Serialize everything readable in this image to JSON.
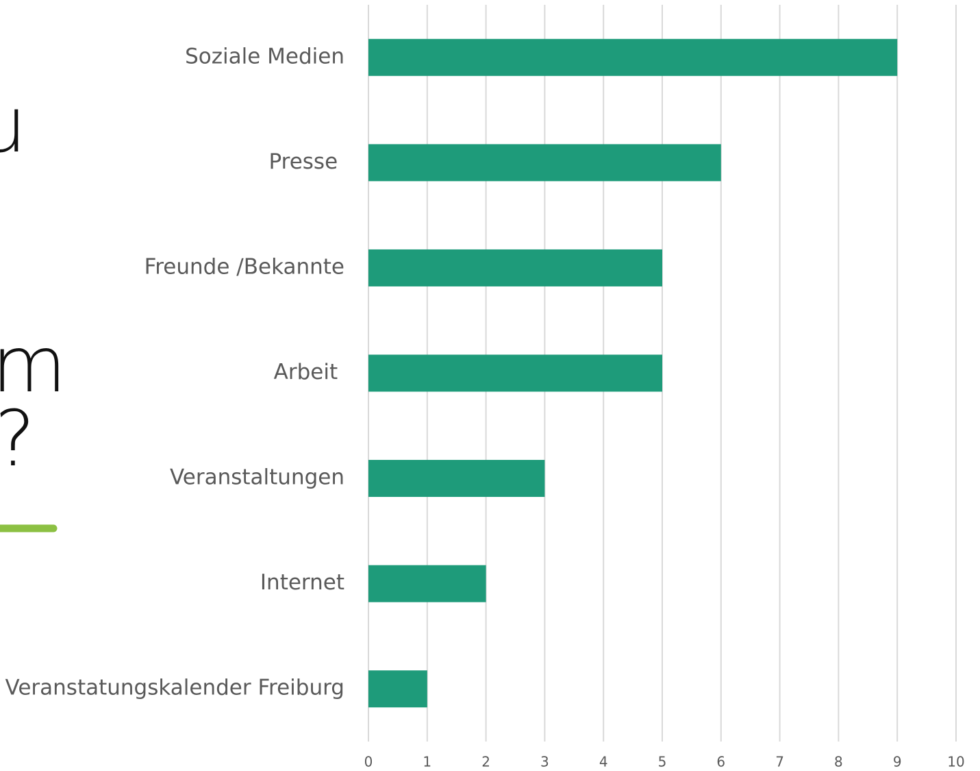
{
  "slide_text": [
    "u",
    "m",
    "?"
  ],
  "chart_data": {
    "type": "bar",
    "orientation": "horizontal",
    "categories": [
      "Soziale Medien",
      "Presse ",
      "Freunde /Bekannte",
      "Arbeit ",
      "Veranstaltungen",
      "Internet",
      "Veranstatungskalender Freiburg"
    ],
    "values": [
      9,
      6,
      5,
      5,
      3,
      2,
      1
    ],
    "color": "#1e9b7a",
    "xlim": [
      0,
      10
    ],
    "xticks": [
      0,
      1,
      2,
      3,
      4,
      5,
      6,
      7,
      8,
      9,
      10
    ],
    "grid": true
  }
}
